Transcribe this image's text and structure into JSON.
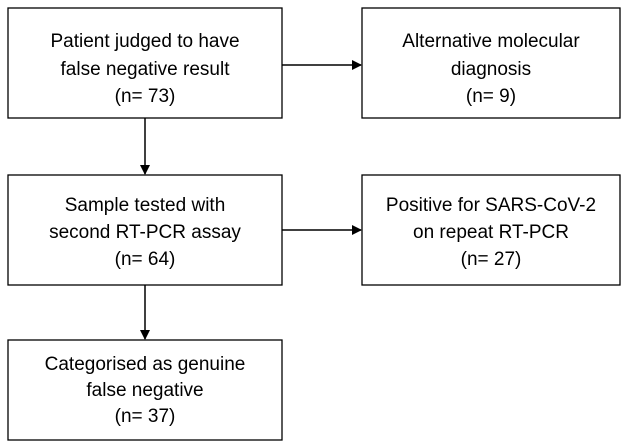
{
  "nodes": [
    {
      "lines": [
        "Patient judged to have",
        "false negative result",
        "(n= 73)"
      ]
    },
    {
      "lines": [
        "Alternative molecular",
        "diagnosis",
        "(n= 9)"
      ]
    },
    {
      "lines": [
        "Sample tested with",
        "second RT-PCR assay",
        "(n= 64)"
      ]
    },
    {
      "lines": [
        "Positive for SARS-CoV-2",
        "on repeat RT-PCR",
        "(n= 27)"
      ]
    },
    {
      "lines": [
        "Categorised as genuine",
        "false negative",
        "(n= 37)"
      ]
    }
  ]
}
